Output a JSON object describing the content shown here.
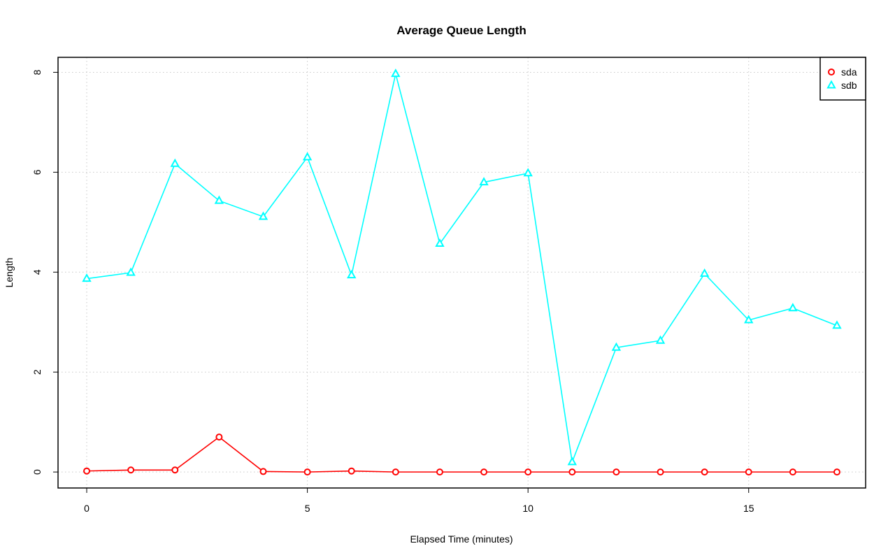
{
  "chart_data": {
    "type": "line",
    "title": "Average Queue Length",
    "xlabel": "Elapsed Time (minutes)",
    "ylabel": "Length",
    "x": [
      0,
      1,
      2,
      3,
      4,
      5,
      6,
      7,
      8,
      9,
      10,
      11,
      12,
      13,
      14,
      15,
      16,
      17
    ],
    "xlim": [
      -0.65,
      17.65
    ],
    "ylim": [
      -0.32,
      8.3
    ],
    "xticks": [
      0,
      5,
      10,
      15
    ],
    "yticks": [
      0,
      2,
      4,
      6,
      8
    ],
    "grid": true,
    "legend_position": "top-right",
    "series": [
      {
        "name": "sda",
        "color": "#ff0000",
        "marker": "circle",
        "values": [
          0.02,
          0.04,
          0.04,
          0.7,
          0.01,
          0.0,
          0.02,
          0.0,
          0.0,
          0.0,
          0.0,
          0.0,
          0.0,
          0.0,
          0.0,
          0.0,
          0.0,
          0.0
        ]
      },
      {
        "name": "sdb",
        "color": "#00ffff",
        "marker": "triangle",
        "values": [
          3.87,
          3.99,
          6.17,
          5.43,
          5.11,
          6.3,
          3.94,
          7.97,
          4.57,
          5.8,
          5.98,
          0.2,
          2.49,
          2.63,
          3.97,
          3.04,
          3.28,
          2.93
        ]
      }
    ]
  }
}
